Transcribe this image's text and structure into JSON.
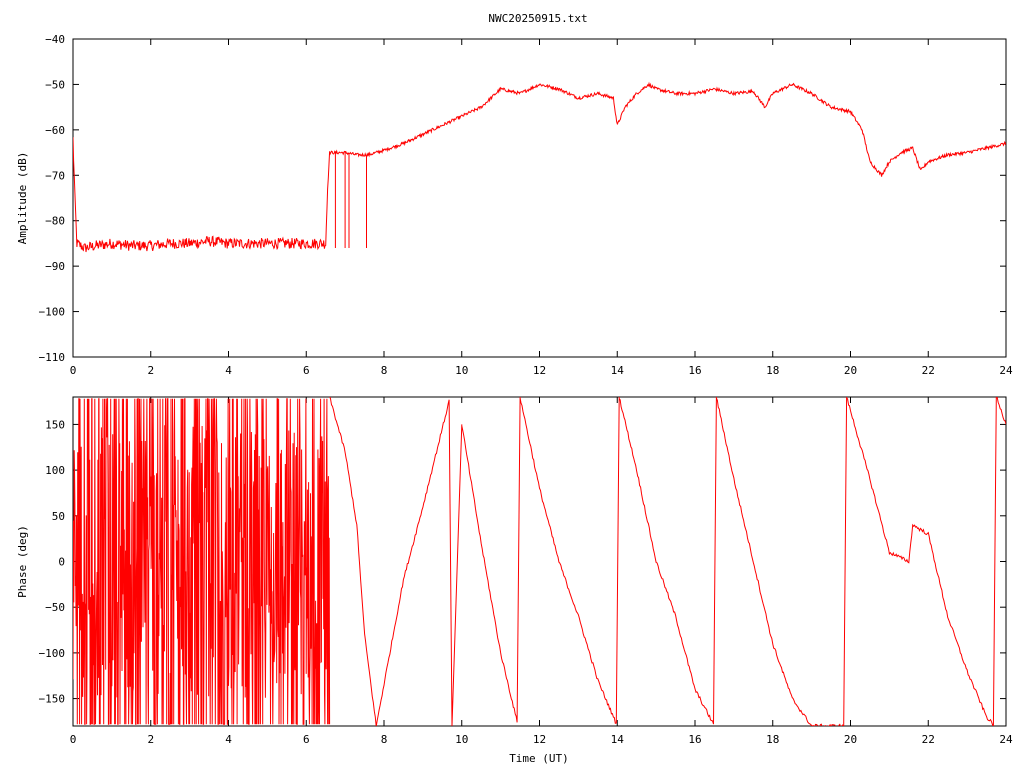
{
  "title": "NWC20250915.txt",
  "chart_data": [
    {
      "type": "line",
      "ylabel": "Amplitude (dB)",
      "xlabel": "",
      "xlim": [
        0,
        24
      ],
      "ylim": [
        -110,
        -40
      ],
      "xticks": [
        0,
        2,
        4,
        6,
        8,
        10,
        12,
        14,
        16,
        18,
        20,
        22,
        24
      ],
      "yticks": [
        -110,
        -100,
        -90,
        -80,
        -70,
        -60,
        -50,
        -40
      ],
      "ytick_labels": [
        "−110",
        "−100",
        "−90",
        "−80",
        "−70",
        "−60",
        "−50",
        "−40"
      ],
      "grid": false,
      "color": "#ff0000",
      "series": [
        {
          "x": [
            0.0,
            0.05,
            0.1,
            0.3,
            0.6,
            1.0,
            1.5,
            2.0,
            2.5,
            3.0,
            3.5,
            4.0,
            4.5,
            5.0,
            5.5,
            6.0,
            6.5,
            6.55,
            6.6,
            6.8,
            7.0,
            7.3,
            7.6,
            7.8,
            8.0,
            8.5,
            9.0,
            9.5,
            10.0,
            10.5,
            11.0,
            11.5,
            12.0,
            12.5,
            13.0,
            13.5,
            13.9,
            14.0,
            14.2,
            14.5,
            14.8,
            15.0,
            15.5,
            16.0,
            16.5,
            17.0,
            17.5,
            17.8,
            18.0,
            18.5,
            19.0,
            19.5,
            20.0,
            20.3,
            20.5,
            20.8,
            21.0,
            21.3,
            21.6,
            21.8,
            22.0,
            22.5,
            23.0,
            23.5,
            24.0
          ],
          "y": [
            -62,
            -75,
            -85,
            -86,
            -85.5,
            -85,
            -85.5,
            -85.5,
            -85,
            -85,
            -84.5,
            -85,
            -85,
            -85,
            -85,
            -85,
            -85,
            -73,
            -65,
            -65,
            -65,
            -65.5,
            -65.5,
            -65,
            -64.5,
            -63,
            -61,
            -59,
            -57,
            -55,
            -51,
            -52,
            -50,
            -51,
            -53,
            -52,
            -53,
            -59,
            -55,
            -52,
            -50,
            -51,
            -52,
            -52,
            -51,
            -52,
            -51.5,
            -55,
            -52,
            -50,
            -52,
            -55,
            -56,
            -60,
            -67,
            -70,
            -67,
            -65,
            -64,
            -69,
            -67,
            -65.5,
            -65,
            -64,
            -63
          ]
        }
      ]
    },
    {
      "type": "line",
      "ylabel": "Phase (deg)",
      "xlabel": "Time (UT)",
      "xlim": [
        0,
        24
      ],
      "ylim": [
        -180,
        180
      ],
      "xticks": [
        0,
        2,
        4,
        6,
        8,
        10,
        12,
        14,
        16,
        18,
        20,
        22,
        24
      ],
      "yticks": [
        -150,
        -100,
        -50,
        0,
        50,
        100,
        150
      ],
      "ytick_labels": [
        "−150",
        "−100",
        "−50",
        "0",
        "50",
        "100",
        "150"
      ],
      "grid": false,
      "color": "#ff0000",
      "noisy_until": 6.6,
      "wrap_range": [
        -180,
        180
      ],
      "series": [
        {
          "x": [
            6.6,
            7.0,
            7.3,
            7.5,
            7.8,
            8.5,
            9.0,
            9.7,
            9.75,
            10.0,
            10.5,
            11.0,
            11.45,
            11.5,
            12.0,
            12.5,
            13.0,
            13.5,
            14.0,
            14.05,
            14.5,
            15.0,
            15.5,
            16.0,
            16.5,
            16.55,
            17.0,
            17.5,
            18.0,
            18.5,
            19.0,
            19.5,
            19.85,
            19.9,
            20.5,
            21.0,
            21.5,
            21.6,
            22.0,
            22.5,
            23.0,
            23.5,
            23.7,
            23.75,
            24.0
          ],
          "y": [
            180,
            120,
            40,
            -80,
            -180,
            -20,
            60,
            180,
            -180,
            150,
            20,
            -100,
            -180,
            180,
            80,
            0,
            -60,
            -130,
            -180,
            180,
            100,
            0,
            -60,
            -140,
            -180,
            180,
            90,
            0,
            -90,
            -150,
            -180,
            -180,
            -180,
            180,
            90,
            10,
            0,
            40,
            30,
            -60,
            -120,
            -170,
            -180,
            180,
            150
          ]
        }
      ]
    }
  ]
}
